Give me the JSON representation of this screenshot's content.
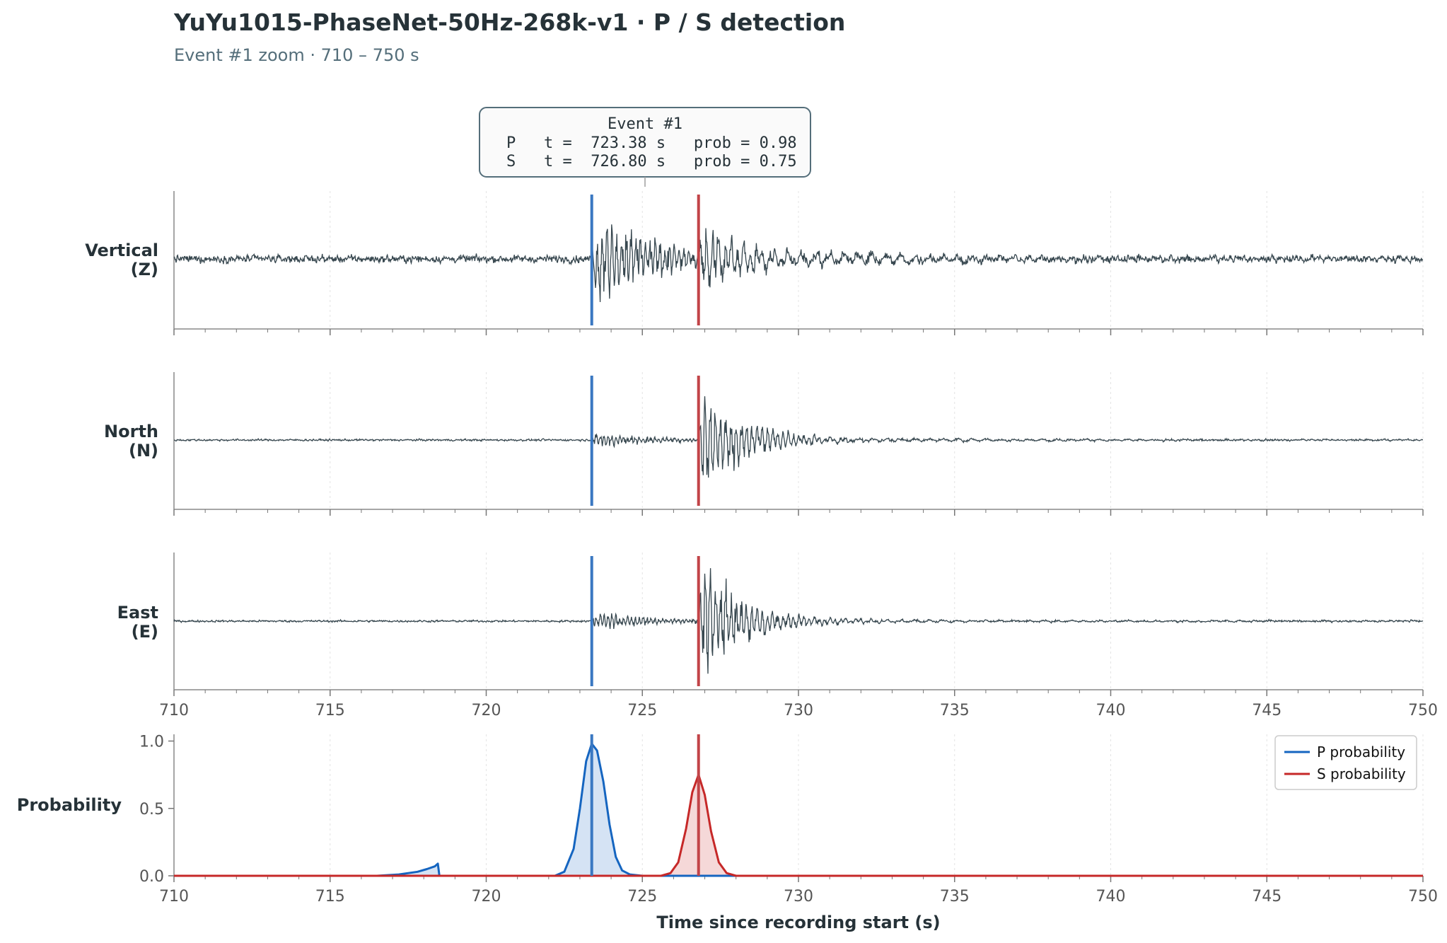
{
  "figure": {
    "title": "YuYu1015-PhaseNet-50Hz-268k-v1  ·  P / S detection",
    "subtitle": "Event #1 zoom · 710 – 750 s"
  },
  "annotation": {
    "header": "Event #1",
    "p_line": "P   t =  723.38 s   prob = 0.98",
    "s_line": "S   t =  726.80 s   prob = 0.75"
  },
  "colors": {
    "p_pick": "#3a78c2",
    "s_pick": "#c24448",
    "p_prob": "#1565c0",
    "s_prob": "#c62828",
    "trace": "#37474f"
  },
  "chart_data": {
    "type": "line",
    "xlabel": "Time since recording start (s)",
    "xlim": [
      710,
      750
    ],
    "xticks": [
      710,
      715,
      720,
      725,
      730,
      735,
      740,
      745,
      750
    ],
    "picks": [
      {
        "phase": "P",
        "time": 723.38,
        "prob": 0.98
      },
      {
        "phase": "S",
        "time": 726.8,
        "prob": 0.75
      }
    ],
    "waveform_panels": [
      {
        "name": "Vertical",
        "label_line1": "Vertical",
        "label_line2": "(Z)",
        "noise": 0.045,
        "p_amp": 0.85,
        "p_freq": 6.5,
        "s_amp": 0.6,
        "s_freq": 5.0,
        "coda": 0.16
      },
      {
        "name": "North",
        "label_line1": "North",
        "label_line2": "(N)",
        "noise": 0.012,
        "p_amp": 0.13,
        "p_freq": 8.0,
        "s_amp": 0.85,
        "s_freq": 6.0,
        "coda": 0.06
      },
      {
        "name": "East",
        "label_line1": "East",
        "label_line2": "(E)",
        "noise": 0.012,
        "p_amp": 0.14,
        "p_freq": 8.0,
        "s_amp": 0.9,
        "s_freq": 6.0,
        "coda": 0.05
      }
    ],
    "probability_panel": {
      "label": "Probability",
      "ylim": [
        0,
        1.05
      ],
      "yticks": [
        0.0,
        0.5,
        1.0
      ],
      "ytick_labels": [
        "0.0",
        "0.5",
        "1.0"
      ],
      "series": [
        {
          "name": "P probability",
          "x": [
            710,
            716.5,
            717.2,
            717.8,
            718.1,
            718.35,
            718.45,
            718.5,
            722.2,
            722.5,
            722.8,
            723.0,
            723.2,
            723.38,
            723.55,
            723.75,
            723.95,
            724.15,
            724.35,
            724.6,
            725.0,
            750
          ],
          "y": [
            0.0,
            0.0,
            0.01,
            0.03,
            0.05,
            0.07,
            0.09,
            0.0,
            0.0,
            0.03,
            0.2,
            0.5,
            0.85,
            0.98,
            0.93,
            0.7,
            0.38,
            0.14,
            0.04,
            0.01,
            0.0,
            0.0
          ]
        },
        {
          "name": "S probability",
          "x": [
            710,
            725.6,
            725.9,
            726.15,
            726.4,
            726.6,
            726.8,
            727.0,
            727.2,
            727.45,
            727.7,
            728.0,
            750
          ],
          "y": [
            0.0,
            0.0,
            0.02,
            0.1,
            0.35,
            0.62,
            0.75,
            0.6,
            0.33,
            0.1,
            0.02,
            0.0,
            0.0
          ]
        }
      ]
    },
    "legend": {
      "position": "top-right",
      "entries": [
        "P probability",
        "S probability"
      ]
    }
  }
}
